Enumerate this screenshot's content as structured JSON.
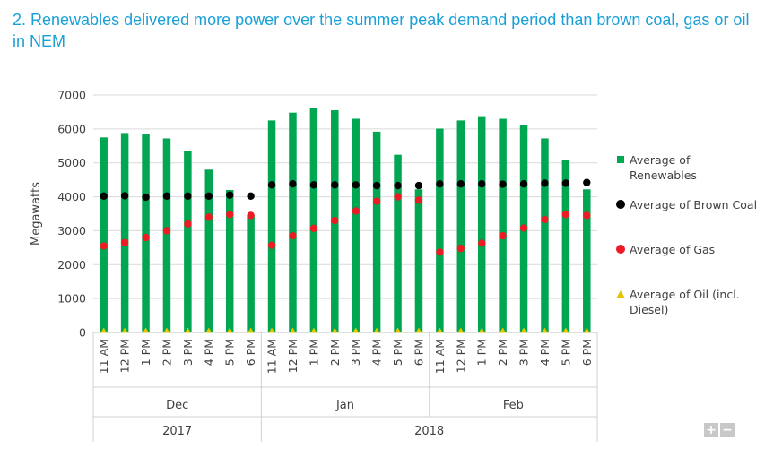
{
  "title": "2. Renewables delivered more power over the summer peak demand period than brown coal, gas or oil in NEM",
  "colors": {
    "title": "#1aa0d8",
    "renewables": "#00a651",
    "brown_coal": "#000000",
    "gas": "#ed1c24",
    "oil": "#e6c400",
    "zoom_button": "#c8c8c8"
  },
  "legend": [
    {
      "label": "Average of Renewables",
      "icon": "green-square",
      "color": "#00a651"
    },
    {
      "label": "Average of Brown Coal",
      "icon": "black-dot",
      "color": "#000000"
    },
    {
      "label": "Average of Gas",
      "icon": "red-dot",
      "color": "#ed1c24"
    },
    {
      "label": "Average of Oil (incl. Diesel)",
      "icon": "yellow-triangle",
      "color": "#e6c400"
    }
  ],
  "zoom": {
    "plus": "+",
    "minus": "−"
  },
  "chart_data": {
    "type": "bar",
    "title": "2. Renewables delivered more power over the summer peak demand period than brown coal, gas or oil in NEM",
    "ylabel": "Megawatts",
    "xlabel": "",
    "ylim": [
      0,
      7000
    ],
    "yticks": [
      0,
      1000,
      2000,
      3000,
      4000,
      5000,
      6000,
      7000
    ],
    "grid": true,
    "legend_position": "right",
    "categories": [
      "11 AM",
      "12 PM",
      "1 PM",
      "2 PM",
      "3 PM",
      "4 PM",
      "5 PM",
      "6 PM",
      "11 AM",
      "12 PM",
      "1 PM",
      "2 PM",
      "3 PM",
      "4 PM",
      "5 PM",
      "6 PM",
      "11 AM",
      "12 PM",
      "1 PM",
      "2 PM",
      "3 PM",
      "4 PM",
      "5 PM",
      "6 PM"
    ],
    "months": [
      {
        "label": "Dec",
        "count": 8
      },
      {
        "label": "Jan",
        "count": 8
      },
      {
        "label": "Feb",
        "count": 8
      }
    ],
    "years": [
      {
        "label": "2017",
        "count": 8
      },
      {
        "label": "2018",
        "count": 16
      }
    ],
    "series": [
      {
        "name": "Average of Renewables",
        "mark": "bar",
        "values": [
          5750,
          5880,
          5850,
          5720,
          5350,
          4800,
          4200,
          3450,
          6250,
          6480,
          6620,
          6550,
          6300,
          5920,
          5240,
          4220,
          6010,
          6250,
          6350,
          6300,
          6120,
          5720,
          5080,
          4220
        ]
      },
      {
        "name": "Average of Brown Coal",
        "mark": "dot",
        "values": [
          4020,
          4030,
          3990,
          4020,
          4020,
          4020,
          4050,
          4020,
          4350,
          4380,
          4350,
          4350,
          4350,
          4330,
          4330,
          4330,
          4380,
          4380,
          4380,
          4370,
          4380,
          4400,
          4400,
          4420
        ]
      },
      {
        "name": "Average of Gas",
        "mark": "dot",
        "values": [
          2550,
          2650,
          2800,
          3000,
          3200,
          3400,
          3480,
          3450,
          2570,
          2850,
          3070,
          3300,
          3580,
          3870,
          4000,
          3900,
          2370,
          2480,
          2630,
          2850,
          3080,
          3330,
          3480,
          3450
        ]
      },
      {
        "name": "Average of Oil (incl. Diesel)",
        "mark": "triangle",
        "values": [
          0,
          0,
          0,
          0,
          0,
          0,
          0,
          0,
          0,
          0,
          0,
          0,
          0,
          0,
          0,
          0,
          0,
          0,
          0,
          0,
          0,
          0,
          0,
          0
        ]
      }
    ]
  }
}
